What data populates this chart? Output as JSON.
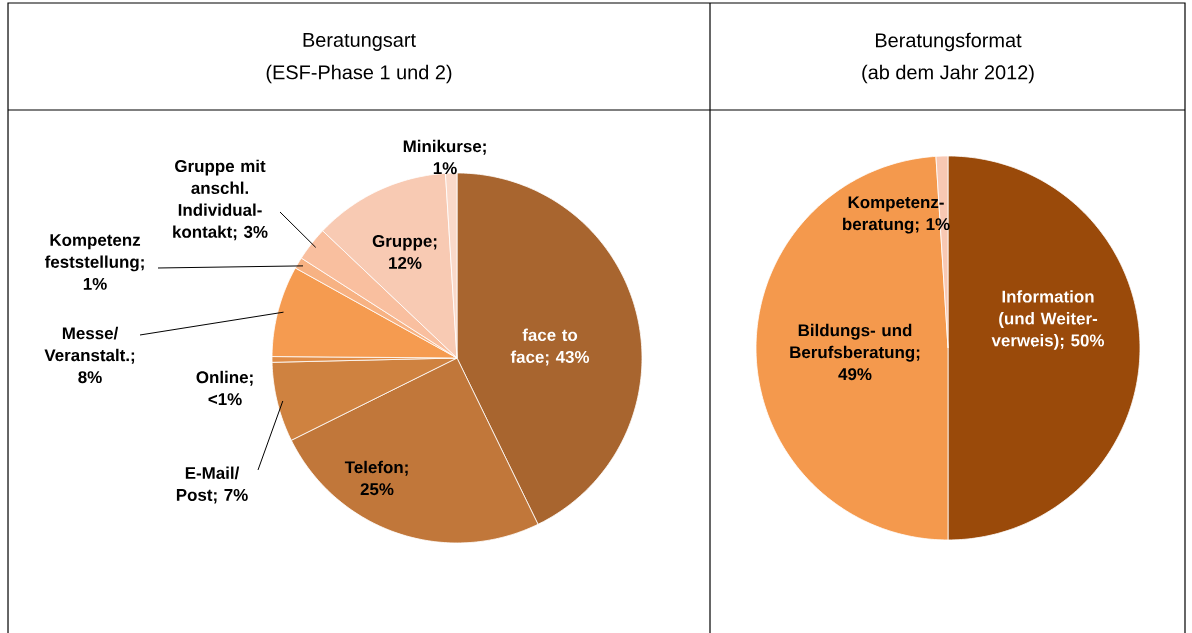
{
  "chart_data": [
    {
      "type": "pie",
      "title": "Beratungsart",
      "subtitle": "(ESF-Phase 1 und 2)",
      "categories": [
        "face to face",
        "Telefon",
        "E-Mail/ Post",
        "Online",
        "Messe/ Veranstalt.",
        "Kompetenz feststellung",
        "Gruppe mit anschl. Individual-kontakt",
        "Gruppe",
        "Minikurse"
      ],
      "values": [
        43,
        25,
        7,
        0.5,
        8,
        1,
        3,
        12,
        1
      ],
      "value_labels": [
        "; 43%",
        "; 25%",
        "; 7%",
        "; <1%",
        "; 8%",
        "; 1%",
        "; 3%",
        "; 12%",
        "; 1%"
      ],
      "colors": [
        "#a8652f",
        "#c1773a",
        "#cf8240",
        "#e08d47",
        "#f59b50",
        "#f7b283",
        "#f9bf9f",
        "#f8cab3",
        "#fad9c9"
      ]
    },
    {
      "type": "pie",
      "title": "Beratungsformat",
      "subtitle": "(ab dem Jahr 2012)",
      "categories": [
        "Information (und Weiter-verweis)",
        "Bildungs- und Berufsberatung",
        "Kompetenz-beratung"
      ],
      "values": [
        50,
        49,
        1
      ],
      "value_labels": [
        "; 50%",
        "; 49%",
        "; 1%"
      ],
      "colors": [
        "#9a4a0a",
        "#f4994d",
        "#f8c8b3"
      ]
    }
  ]
}
